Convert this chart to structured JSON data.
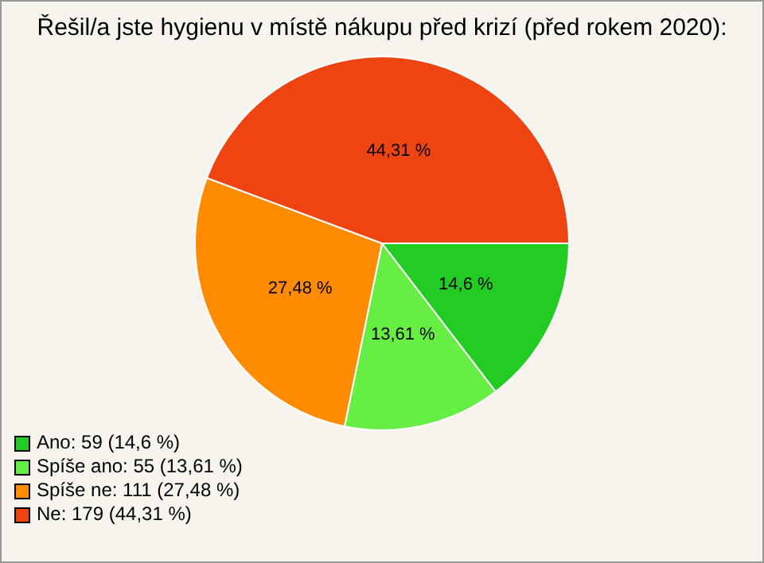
{
  "chart_data": {
    "type": "pie",
    "title": "Řešil/a jste hygienu v místě nákupu před krizí (před rokem 2020):",
    "categories": [
      "Ano: 59 (14,6 %)",
      "Spíše ano: 55 (13,61 %)",
      "Spíše ne: 111 (27,48 %)",
      "Ne: 179 (44,31 %)"
    ],
    "values": [
      14.6,
      13.61,
      27.48,
      44.31
    ],
    "value_labels": [
      "14,6 %",
      "13,61 %",
      "27,48 %",
      "44,31 %"
    ],
    "colors": [
      "#22cc22",
      "#66ee44",
      "#ff8c00",
      "#ee4411"
    ],
    "legend": "bottom left"
  }
}
